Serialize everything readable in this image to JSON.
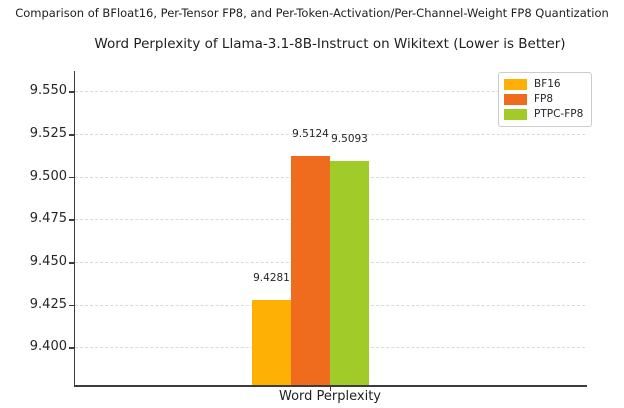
{
  "figure": {
    "suptitle": "Comparison of BFloat16, Per-Tensor FP8, and Per-Token-Activation/Per-Channel-Weight FP8 Quantization",
    "title": "Word Perplexity of Llama-3.1-8B-Instruct on Wikitext (Lower is Better)"
  },
  "chart_data": {
    "type": "bar",
    "suptitle": "Comparison of BFloat16, Per-Tensor FP8, and Per-Token-Activation/Per-Channel-Weight FP8 Quantization",
    "title": "Word Perplexity of Llama-3.1-8B-Instruct on Wikitext (Lower is Better)",
    "categories": [
      "Word Perplexity"
    ],
    "series": [
      {
        "name": "BF16",
        "values": [
          9.4281
        ],
        "color": "#FFB005"
      },
      {
        "name": "FP8",
        "values": [
          9.5124
        ],
        "color": "#EF6C1E"
      },
      {
        "name": "PTPC-FP8",
        "values": [
          9.5093
        ],
        "color": "#A0CB28"
      }
    ],
    "value_labels": [
      "9.4281",
      "9.5124",
      "9.5093"
    ],
    "xlabel": "Word Perplexity",
    "ylabel": "",
    "ylim": [
      9.378,
      9.562
    ],
    "yticks": [
      9.4,
      9.425,
      9.45,
      9.475,
      9.5,
      9.525,
      9.55
    ],
    "ytick_labels": [
      "9.400",
      "9.425",
      "9.450",
      "9.475",
      "9.500",
      "9.525",
      "9.550"
    ],
    "grid": "horizontal-dashed",
    "legend_position": "upper right",
    "legend": [
      "BF16",
      "FP8",
      "PTPC-FP8"
    ],
    "spine_color": "#3c3c3c",
    "grid_color": "#d9d9d9"
  }
}
